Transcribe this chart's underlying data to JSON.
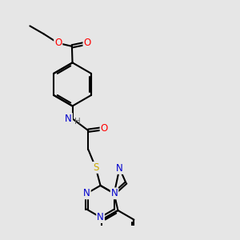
{
  "bg_color": "#e6e6e6",
  "bond_color": "#000000",
  "bond_width": 1.5,
  "atom_colors": {
    "O": "#ff0000",
    "N": "#0000cc",
    "S": "#ccaa00",
    "H": "#666666",
    "C": "#000000"
  },
  "font_size": 8.5
}
